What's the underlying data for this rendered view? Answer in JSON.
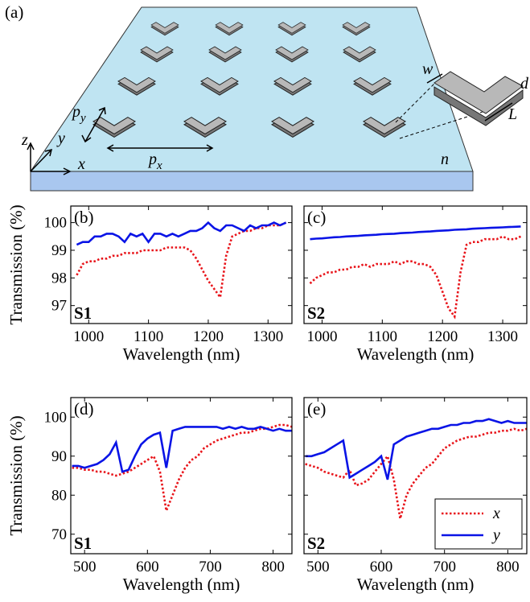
{
  "diagram": {
    "panel": "(a)",
    "axes": {
      "z": "z",
      "y": "y",
      "x": "x"
    },
    "period_y": {
      "text": "p",
      "sub": "y"
    },
    "period_x": {
      "text": "p",
      "sub": "x"
    },
    "width": "w",
    "thickness": "d",
    "length": "L",
    "index": "n"
  },
  "chart_data": [
    {
      "type": "line",
      "panel": "(b)",
      "annotation": "S1",
      "xlabel": "Wavelength (nm)",
      "ylabel": "Transmission (%)",
      "xlim": [
        970,
        1340
      ],
      "ylim": [
        96.35,
        100.6
      ],
      "xticks": [
        1000,
        1100,
        1200,
        1300
      ],
      "yticks": [
        97,
        98,
        99,
        100
      ],
      "ytick_labels": true,
      "x": [
        980,
        990,
        1000,
        1010,
        1020,
        1030,
        1040,
        1050,
        1060,
        1070,
        1080,
        1090,
        1100,
        1110,
        1120,
        1130,
        1140,
        1150,
        1160,
        1170,
        1180,
        1190,
        1200,
        1210,
        1220,
        1230,
        1240,
        1250,
        1260,
        1270,
        1280,
        1290,
        1300,
        1310,
        1320,
        1330
      ],
      "series": [
        {
          "color": "#e8141a",
          "style": "dotted",
          "values": [
            98.1,
            98.5,
            98.6,
            98.6,
            98.7,
            98.7,
            98.8,
            98.8,
            98.9,
            98.9,
            98.9,
            99.0,
            99.0,
            99.0,
            99.0,
            99.1,
            99.1,
            99.1,
            99.1,
            99.0,
            98.7,
            98.3,
            97.9,
            97.6,
            97.3,
            98.8,
            99.5,
            99.6,
            99.7,
            99.7,
            99.8,
            99.8,
            99.9,
            99.9,
            99.9,
            100.0
          ]
        },
        {
          "color": "#0a14e6",
          "style": "solid",
          "values": [
            99.2,
            99.3,
            99.3,
            99.5,
            99.5,
            99.6,
            99.6,
            99.5,
            99.3,
            99.6,
            99.5,
            99.6,
            99.3,
            99.6,
            99.6,
            99.5,
            99.6,
            99.5,
            99.6,
            99.7,
            99.7,
            99.8,
            100.0,
            99.8,
            99.7,
            99.9,
            99.9,
            99.8,
            99.7,
            99.9,
            99.8,
            99.9,
            99.9,
            100.0,
            99.9,
            100.0
          ]
        }
      ]
    },
    {
      "type": "line",
      "panel": "(c)",
      "annotation": "S2",
      "xlabel": "Wavelength (nm)",
      "xlim": [
        970,
        1340
      ],
      "ylim": [
        96.35,
        100.6
      ],
      "xticks": [
        1000,
        1100,
        1200,
        1300
      ],
      "yticks": [
        97,
        98,
        99,
        100
      ],
      "ytick_labels": false,
      "x": [
        980,
        990,
        1000,
        1010,
        1020,
        1030,
        1040,
        1050,
        1060,
        1070,
        1080,
        1090,
        1100,
        1110,
        1120,
        1130,
        1140,
        1150,
        1160,
        1170,
        1180,
        1190,
        1200,
        1210,
        1220,
        1230,
        1240,
        1250,
        1260,
        1270,
        1280,
        1290,
        1300,
        1310,
        1320,
        1330
      ],
      "series": [
        {
          "color": "#e8141a",
          "style": "dotted",
          "values": [
            97.8,
            98.0,
            98.1,
            98.2,
            98.2,
            98.3,
            98.3,
            98.4,
            98.4,
            98.5,
            98.4,
            98.5,
            98.5,
            98.5,
            98.6,
            98.5,
            98.6,
            98.6,
            98.5,
            98.5,
            98.4,
            98.1,
            97.5,
            96.9,
            96.6,
            98.2,
            99.2,
            99.3,
            99.3,
            99.4,
            99.4,
            99.4,
            99.5,
            99.4,
            99.4,
            99.5
          ]
        },
        {
          "color": "#0a14e6",
          "style": "solid",
          "values": [
            99.4,
            99.42,
            99.43,
            99.45,
            99.47,
            99.48,
            99.5,
            99.51,
            99.52,
            99.54,
            99.55,
            99.56,
            99.58,
            99.59,
            99.6,
            99.62,
            99.63,
            99.64,
            99.66,
            99.67,
            99.68,
            99.7,
            99.71,
            99.72,
            99.74,
            99.75,
            99.76,
            99.78,
            99.79,
            99.8,
            99.81,
            99.82,
            99.83,
            99.84,
            99.85,
            99.86
          ]
        }
      ]
    },
    {
      "type": "line",
      "panel": "(d)",
      "annotation": "S1",
      "xlabel": "Wavelength (nm)",
      "ylabel": "Transmission (%)",
      "xlim": [
        478,
        830
      ],
      "ylim": [
        65,
        105
      ],
      "xticks": [
        500,
        600,
        700,
        800
      ],
      "yticks": [
        70,
        80,
        90,
        100
      ],
      "ytick_labels": true,
      "x": [
        480,
        490,
        500,
        510,
        520,
        530,
        540,
        550,
        560,
        570,
        580,
        590,
        600,
        610,
        620,
        630,
        640,
        650,
        660,
        670,
        680,
        690,
        700,
        710,
        720,
        730,
        740,
        750,
        760,
        770,
        780,
        790,
        800,
        810,
        820,
        830
      ],
      "series": [
        {
          "color": "#e8141a",
          "style": "dotted",
          "values": [
            87,
            87,
            86.5,
            86.5,
            86,
            86,
            85.5,
            85,
            85.5,
            86,
            87,
            88,
            89,
            90,
            86,
            76,
            80,
            84,
            87,
            89,
            90,
            92,
            93,
            94,
            94.5,
            95,
            95.5,
            96,
            96,
            96.5,
            97,
            97,
            97.5,
            98,
            98,
            97.5
          ]
        },
        {
          "color": "#0a14e6",
          "style": "solid",
          "values": [
            87.5,
            87.5,
            87,
            87.5,
            88,
            89,
            90.5,
            93.5,
            86,
            86.5,
            90,
            93,
            94.5,
            95.5,
            96,
            87,
            96.5,
            97,
            97.5,
            97.5,
            97.5,
            97.5,
            97.5,
            97.5,
            97,
            97.5,
            97,
            97.5,
            97,
            97,
            97.5,
            97,
            96.5,
            97,
            96.5,
            96.5
          ]
        }
      ]
    },
    {
      "type": "line",
      "panel": "(e)",
      "annotation": "S2",
      "xlabel": "Wavelength (nm)",
      "xlim": [
        478,
        830
      ],
      "ylim": [
        65,
        105
      ],
      "xticks": [
        500,
        600,
        700,
        800
      ],
      "yticks": [
        70,
        80,
        90,
        100
      ],
      "ytick_labels": false,
      "legend": "lower right",
      "x": [
        480,
        490,
        500,
        510,
        520,
        530,
        540,
        550,
        560,
        570,
        580,
        590,
        600,
        610,
        620,
        630,
        640,
        650,
        660,
        670,
        680,
        690,
        700,
        710,
        720,
        730,
        740,
        750,
        760,
        770,
        780,
        790,
        800,
        810,
        820,
        830
      ],
      "series": [
        {
          "name": "x",
          "color": "#e8141a",
          "style": "dotted",
          "values": [
            88,
            87.5,
            87,
            86,
            85.5,
            85,
            84.5,
            86.5,
            82.5,
            83,
            84,
            86,
            88,
            90,
            84,
            74,
            80,
            83,
            85,
            87,
            88,
            90,
            92,
            93,
            94,
            94.5,
            95,
            95,
            95.5,
            96,
            96,
            96.5,
            96.5,
            97,
            96.5,
            97
          ]
        },
        {
          "name": "y",
          "color": "#0a14e6",
          "style": "solid",
          "values": [
            90,
            90,
            90.5,
            91,
            92,
            93,
            94,
            84.5,
            85.5,
            86.5,
            87.5,
            88.5,
            90,
            84,
            93,
            94,
            95,
            95.5,
            96,
            96.5,
            97,
            97,
            97.5,
            98,
            98,
            98.5,
            98.5,
            99,
            99,
            99.5,
            99,
            98.5,
            99,
            98.5,
            98.5,
            98.5
          ]
        }
      ]
    }
  ]
}
